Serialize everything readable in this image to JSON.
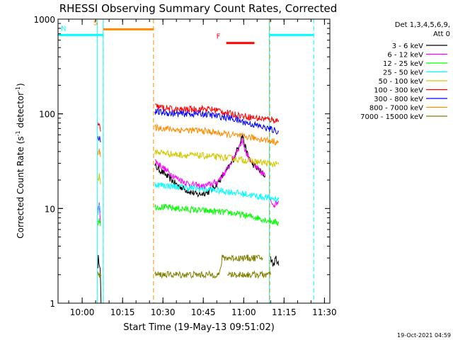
{
  "chart_data": {
    "type": "line",
    "title": "RHESSI Observing Summary Count Rates, Corrected",
    "xlabel": "Start Time (19-May-13 09:51:02)",
    "ylabel": "Corrected Count Rate (s⁻¹ detector⁻¹)",
    "ylabel_main": "Corrected Count Rate (s",
    "ylabel_sup1": "-1",
    "ylabel_mid": " detector",
    "ylabel_sup2": "-1",
    "ylabel_end": ")",
    "y_scale": "log",
    "ylim": [
      1,
      1000
    ],
    "xlim": [
      "09:51:02",
      "11:32:00"
    ],
    "x_ticks": [
      "10:00",
      "10:15",
      "10:30",
      "10:45",
      "11:00",
      "11:15",
      "11:30"
    ],
    "y_ticks": [
      "1",
      "10",
      "100",
      "1000"
    ],
    "footer_date": "19-Oct-2021 04:59",
    "legend": {
      "position": "right",
      "header1": "Det 1,3,4,5,6,9,",
      "header2": "Att 0",
      "entries": [
        {
          "label": "3 - 6 keV",
          "color": "#000000"
        },
        {
          "label": "6 - 12 keV",
          "color": "#ff00ff"
        },
        {
          "label": "12 - 25 keV",
          "color": "#00ff00"
        },
        {
          "label": "25 - 50 keV",
          "color": "#00ffff"
        },
        {
          "label": "50 - 100 keV",
          "color": "#d2c800"
        },
        {
          "label": "100 - 300 keV",
          "color": "#ff0000"
        },
        {
          "label": "300 - 800 keV",
          "color": "#0000ff"
        },
        {
          "label": "800 - 7000 keV",
          "color": "#ff8c00"
        },
        {
          "label": "7000 - 15000 keV",
          "color": "#808000"
        }
      ]
    },
    "flags": [
      {
        "label": "S",
        "color": "#ff8c00",
        "start": "10:07:50",
        "end": "10:26:30",
        "level": 780
      },
      {
        "label": "N",
        "color": "#00ffff",
        "start": "09:51:02",
        "end": "10:07:50",
        "level": 680
      },
      {
        "label": "F",
        "color": "#ff0000",
        "start": "10:53:30",
        "end": "11:04:00",
        "level": 560
      },
      {
        "label": "",
        "color": "#00ffff",
        "start": "11:09:30",
        "end": "11:26:00",
        "level": 680
      }
    ],
    "boundaries": [
      {
        "time": "10:05:40",
        "color": "#00ffff",
        "style": "solid"
      },
      {
        "time": "10:07:50",
        "color": "#ff8c00",
        "style": "dashed"
      },
      {
        "time": "10:07:50",
        "color": "#00ffff",
        "style": "solid"
      },
      {
        "time": "10:26:30",
        "color": "#ff8c00",
        "style": "dashed"
      },
      {
        "time": "11:09:30",
        "color": "#00ffff",
        "style": "solid"
      },
      {
        "time": "11:09:40",
        "color": "#ff8c00",
        "style": "dashed"
      },
      {
        "time": "11:26:00",
        "color": "#00ffff",
        "style": "dashed"
      }
    ],
    "series": [
      {
        "name": "3 - 6 keV",
        "color": "#000000",
        "segments": [
          {
            "t": [
              "10:05:50",
              "10:06:00",
              "10:06:40",
              "10:07:00"
            ],
            "values": [
              2.5,
              3.0,
              2.5,
              1.0
            ]
          },
          {
            "t": [
              "10:27:00",
              "10:30:00",
              "10:35:00",
              "10:38:00",
              "10:40:00",
              "10:43:00",
              "10:47:00",
              "10:50:00",
              "10:54:00",
              "10:56:00",
              "10:58:00",
              "10:59:30",
              "11:01:00",
              "11:03:00",
              "11:06:00",
              "11:08:00"
            ],
            "values": [
              28,
              24,
              18,
              16,
              15,
              14,
              15,
              18,
              26,
              32,
              45,
              60,
              40,
              30,
              25,
              22
            ]
          },
          {
            "t": [
              "11:10:00",
              "11:11:00",
              "11:12:00",
              "11:13:00"
            ],
            "values": [
              3.0,
              2.5,
              3.0,
              2.5
            ]
          }
        ]
      },
      {
        "name": "6 - 12 keV",
        "color": "#ff00ff",
        "segments": [
          {
            "t": [
              "10:05:50",
              "10:06:20",
              "10:06:50"
            ],
            "values": [
              9,
              12,
              7
            ]
          },
          {
            "t": [
              "10:27:00",
              "10:30:00",
              "10:35:00",
              "10:40:00",
              "10:45:00",
              "10:50:00",
              "10:54:00",
              "10:57:00",
              "10:59:30",
              "11:01:00",
              "11:04:00",
              "11:08:00"
            ],
            "values": [
              32,
              27,
              21,
              18,
              17,
              19,
              26,
              38,
              52,
              38,
              28,
              22
            ]
          },
          {
            "t": [
              "11:10:00",
              "11:11:30",
              "11:13:00"
            ],
            "values": [
              12,
              11,
              12
            ]
          }
        ]
      },
      {
        "name": "12 - 25 keV",
        "color": "#00ff00",
        "segments": [
          {
            "t": [
              "10:05:50",
              "10:06:20",
              "10:06:50"
            ],
            "values": [
              7,
              8,
              6.5
            ]
          },
          {
            "t": [
              "10:27:00",
              "10:35:00",
              "10:45:00",
              "10:55:00",
              "11:00:00",
              "11:05:00",
              "11:13:00"
            ],
            "values": [
              10.5,
              10,
              9.5,
              9,
              8.5,
              8,
              7
            ]
          }
        ]
      },
      {
        "name": "25 - 50 keV",
        "color": "#00ffff",
        "segments": [
          {
            "t": [
              "10:05:50",
              "10:06:20",
              "10:06:50"
            ],
            "values": [
              9,
              11,
              9
            ]
          },
          {
            "t": [
              "10:27:00",
              "10:35:00",
              "10:45:00",
              "10:55:00",
              "11:05:00",
              "11:13:00"
            ],
            "values": [
              18,
              17,
              16,
              15,
              13.5,
              12.5
            ]
          }
        ]
      },
      {
        "name": "50 - 100 keV",
        "color": "#d2c800",
        "segments": [
          {
            "t": [
              "10:05:50",
              "10:06:20",
              "10:06:50"
            ],
            "values": [
              20,
              22,
              18
            ]
          },
          {
            "t": [
              "10:27:00",
              "10:35:00",
              "10:45:00",
              "10:55:00",
              "11:05:00",
              "11:13:00"
            ],
            "values": [
              40,
              37,
              36,
              34,
              31,
              29
            ]
          }
        ]
      },
      {
        "name": "100 - 300 keV",
        "color": "#ff0000",
        "segments": [
          {
            "t": [
              "10:05:50",
              "10:06:20",
              "10:06:50"
            ],
            "values": [
              75,
              80,
              65
            ]
          },
          {
            "t": [
              "10:27:00",
              "10:35:00",
              "10:45:00",
              "10:50:00",
              "10:55:00",
              "11:05:00",
              "11:13:00"
            ],
            "values": [
              120,
              110,
              113,
              110,
              100,
              90,
              85
            ]
          }
        ]
      },
      {
        "name": "300 - 800 keV",
        "color": "#0000ff",
        "segments": [
          {
            "t": [
              "10:05:50",
              "10:06:20",
              "10:06:50"
            ],
            "values": [
              55,
              58,
              50
            ]
          },
          {
            "t": [
              "10:27:00",
              "10:35:00",
              "10:45:00",
              "10:55:00",
              "11:05:00",
              "11:13:00"
            ],
            "values": [
              105,
              100,
              100,
              90,
              75,
              65
            ]
          }
        ]
      },
      {
        "name": "800 - 7000 keV",
        "color": "#ff8c00",
        "segments": [
          {
            "t": [
              "10:05:50",
              "10:06:20",
              "10:06:50"
            ],
            "values": [
              38,
              40,
              35
            ]
          },
          {
            "t": [
              "10:27:00",
              "10:35:00",
              "10:45:00",
              "10:55:00",
              "11:05:00",
              "11:13:00"
            ],
            "values": [
              72,
              68,
              66,
              60,
              55,
              50
            ]
          }
        ]
      },
      {
        "name": "7000 - 15000 keV",
        "color": "#808000",
        "segments": [
          {
            "t": [
              "10:05:50",
              "10:07:00"
            ],
            "values": [
              2,
              2
            ]
          },
          {
            "t": [
              "10:27:00",
              "10:38:00",
              "10:39:00",
              "10:51:00",
              "10:52:00",
              "11:07:00"
            ],
            "values": [
              2,
              2,
              2,
              2,
              3,
              3
            ]
          },
          {
            "t": [
              "10:54:00",
              "11:10:00"
            ],
            "values": [
              2,
              2
            ]
          }
        ]
      }
    ]
  }
}
